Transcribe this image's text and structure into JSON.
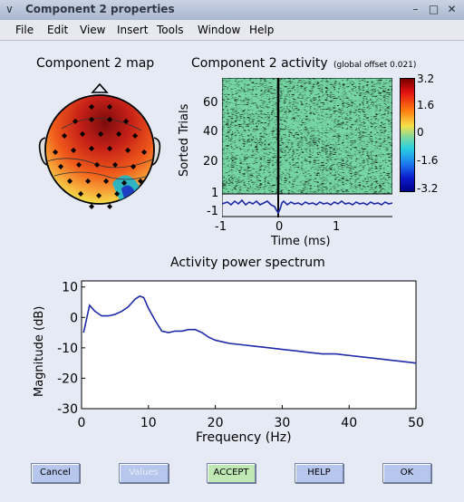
{
  "window": {
    "title": "Component 2 properties",
    "icon": "chevron-down-icon",
    "controls": [
      "minimize-icon",
      "maximize-icon",
      "close-icon"
    ]
  },
  "menu": [
    "File",
    "Edit",
    "View",
    "Insert",
    "Tools",
    "Window",
    "Help"
  ],
  "map": {
    "title": "Component 2 map"
  },
  "activity": {
    "title": "Component 2 activity",
    "offset": "(global offset 0.021)",
    "ylabel": "Sorted Trials",
    "yticks": [
      "60",
      "40",
      "20"
    ],
    "erp_ticks": [
      "1",
      "-1"
    ],
    "xticks": [
      "-1",
      "0",
      "1"
    ],
    "xlabel": "Time (ms)",
    "colorbar": [
      "3.2",
      "1.6",
      "0",
      "-1.6",
      "-3.2"
    ]
  },
  "spectrum": {
    "title": "Activity power spectrum"
  },
  "buttons": {
    "cancel": "Cancel",
    "values": "Values",
    "accept": "ACCEPT",
    "help": "HELP",
    "ok": "OK"
  },
  "colors": {
    "accept_button": "#bfe8b4",
    "button": "#b7c6ec",
    "line": "#1f2aa8"
  },
  "chart_data": {
    "type": "line",
    "title": "Activity power spectrum",
    "xlabel": "Frequency (Hz)",
    "ylabel": "Magnitude (dB)",
    "xlim": [
      0,
      50
    ],
    "ylim": [
      -30,
      12
    ],
    "xticks": [
      0,
      10,
      20,
      30,
      40,
      50
    ],
    "yticks": [
      10,
      0,
      -10,
      -20,
      -30
    ],
    "grid": false,
    "series": [
      {
        "color": "#1f2aa8",
        "x": [
          0.3,
          0.7,
          1.2,
          2,
          3,
          4,
          5,
          6,
          7,
          8,
          8.7,
          9.3,
          10,
          11,
          12,
          13,
          14,
          15,
          16,
          17,
          18,
          19,
          20,
          22,
          24,
          26,
          28,
          30,
          32,
          34,
          36,
          38,
          40,
          42,
          44,
          46,
          48,
          50
        ],
        "values": [
          -5,
          -1,
          4,
          2,
          0.5,
          0.5,
          1,
          2,
          3.5,
          6,
          7,
          6.5,
          3,
          -1,
          -4.5,
          -5,
          -4.5,
          -4.5,
          -4,
          -4,
          -5,
          -6.5,
          -7.5,
          -8.5,
          -9,
          -9.5,
          -10,
          -10.5,
          -11,
          -11.5,
          -12,
          -12,
          -12.5,
          -13,
          -13.5,
          -14,
          -14.5,
          -15
        ]
      }
    ]
  }
}
